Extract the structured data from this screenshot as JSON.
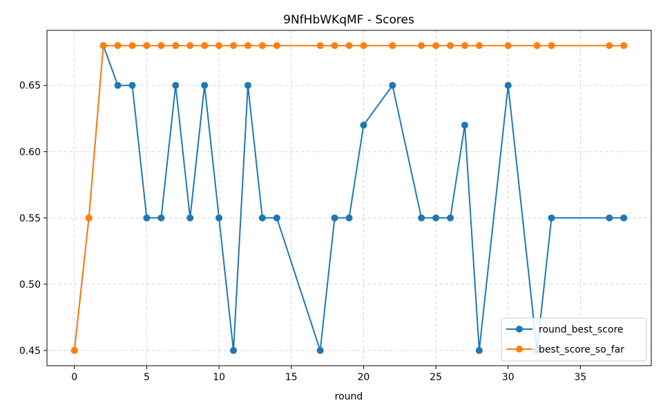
{
  "chart_data": {
    "type": "line",
    "title": "9NfHbWKqMF - Scores",
    "xlabel": "round",
    "ylabel": "",
    "xlim": [
      -1.9,
      39.9
    ],
    "ylim": [
      0.4385,
      0.6915
    ],
    "xticks": [
      0,
      5,
      10,
      15,
      20,
      25,
      30,
      35
    ],
    "yticks": [
      0.45,
      0.5,
      0.55,
      0.6,
      0.65
    ],
    "grid": true,
    "legend_position": "bottom-right",
    "series": [
      {
        "name": "round_best_score",
        "color": "#1f77b4",
        "x": [
          0,
          1,
          2,
          3,
          4,
          5,
          6,
          7,
          8,
          9,
          10,
          11,
          12,
          13,
          14,
          17,
          18,
          19,
          20,
          22,
          24,
          25,
          26,
          27,
          28,
          30,
          32,
          33,
          37,
          38
        ],
        "y": [
          0.45,
          0.55,
          0.68,
          0.65,
          0.65,
          0.55,
          0.55,
          0.65,
          0.55,
          0.65,
          0.55,
          0.45,
          0.65,
          0.55,
          0.55,
          0.45,
          0.55,
          0.55,
          0.62,
          0.65,
          0.55,
          0.55,
          0.55,
          0.62,
          0.45,
          0.65,
          0.45,
          0.55,
          0.55,
          0.55
        ]
      },
      {
        "name": "best_score_so_far",
        "color": "#ff7f0e",
        "x": [
          0,
          1,
          2,
          3,
          4,
          5,
          6,
          7,
          8,
          9,
          10,
          11,
          12,
          13,
          14,
          17,
          18,
          19,
          20,
          22,
          24,
          25,
          26,
          27,
          28,
          30,
          32,
          33,
          37,
          38
        ],
        "y": [
          0.45,
          0.55,
          0.68,
          0.68,
          0.68,
          0.68,
          0.68,
          0.68,
          0.68,
          0.68,
          0.68,
          0.68,
          0.68,
          0.68,
          0.68,
          0.68,
          0.68,
          0.68,
          0.68,
          0.68,
          0.68,
          0.68,
          0.68,
          0.68,
          0.68,
          0.68,
          0.68,
          0.68,
          0.68,
          0.68
        ]
      }
    ]
  }
}
